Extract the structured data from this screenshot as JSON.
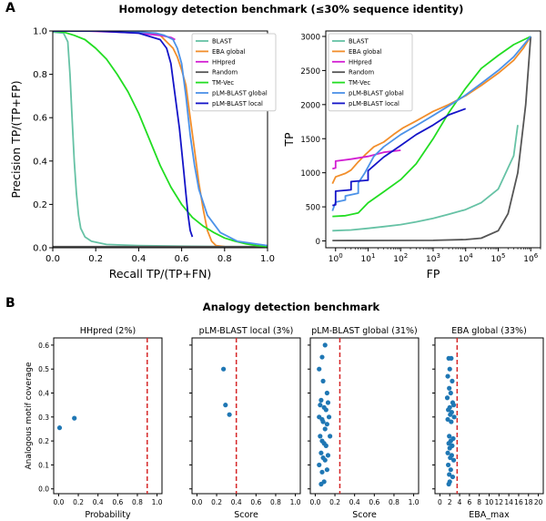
{
  "figure": {
    "panel_a_letter": "A",
    "panel_b_letter": "B",
    "panel_a_title": "Homology detection benchmark (≤30% sequence identity)",
    "panel_b_title": "Analogy detection benchmark"
  },
  "colors": {
    "BLAST": "#66c2a5",
    "EBA global": "#f28e2b",
    "HHpred": "#d21fd2",
    "Random": "#555555",
    "TM-Vec": "#22dd22",
    "pLM-BLAST global": "#4c92e8",
    "pLM-BLAST local": "#1414c8",
    "threshold": "#d62728",
    "points": "#1f77b4"
  },
  "chart_data": [
    {
      "id": "precision_recall",
      "type": "line",
      "xlabel": "Recall TP/(TP+FN)",
      "ylabel": "Precision TP/(TP+FP)",
      "xlim": [
        0,
        1
      ],
      "ylim": [
        0,
        1
      ],
      "xticks": [
        "0.0",
        "0.2",
        "0.4",
        "0.6",
        "0.8",
        "1.0"
      ],
      "yticks": [
        "0.0",
        "0.2",
        "0.4",
        "0.6",
        "0.8",
        "1.0"
      ],
      "legend": "top-right",
      "series": [
        {
          "name": "BLAST",
          "x": [
            0,
            0.05,
            0.07,
            0.08,
            0.09,
            0.1,
            0.11,
            0.12,
            0.13,
            0.15,
            0.18,
            0.25,
            0.4,
            0.6,
            0.8,
            1.0
          ],
          "y": [
            0.995,
            0.99,
            0.95,
            0.8,
            0.6,
            0.4,
            0.25,
            0.15,
            0.09,
            0.05,
            0.03,
            0.015,
            0.01,
            0.007,
            0.005,
            0.004
          ]
        },
        {
          "name": "EBA global",
          "x": [
            0,
            0.2,
            0.4,
            0.46,
            0.5,
            0.53,
            0.56,
            0.58,
            0.6,
            0.62,
            0.64,
            0.66,
            0.68,
            0.7,
            0.72,
            0.74,
            0.76,
            0.8,
            1.0
          ],
          "y": [
            1,
            1,
            0.995,
            0.99,
            0.98,
            0.95,
            0.92,
            0.88,
            0.82,
            0.75,
            0.6,
            0.45,
            0.3,
            0.18,
            0.08,
            0.03,
            0.01,
            0.005,
            0.003
          ]
        },
        {
          "name": "HHpred",
          "x": [
            0,
            0.15,
            0.3,
            0.4,
            0.5,
            0.55,
            0.57
          ],
          "y": [
            1,
            1,
            0.995,
            0.99,
            0.98,
            0.97,
            0.96
          ]
        },
        {
          "name": "Random",
          "x": [
            0,
            1.0
          ],
          "y": [
            0.005,
            0.005
          ]
        },
        {
          "name": "TM-Vec",
          "x": [
            0,
            0.05,
            0.1,
            0.15,
            0.2,
            0.25,
            0.3,
            0.35,
            0.4,
            0.45,
            0.5,
            0.55,
            0.6,
            0.65,
            0.7,
            0.75,
            0.8,
            0.85,
            0.9,
            0.95,
            1.0
          ],
          "y": [
            1,
            0.995,
            0.98,
            0.96,
            0.92,
            0.87,
            0.8,
            0.72,
            0.62,
            0.5,
            0.38,
            0.28,
            0.2,
            0.14,
            0.1,
            0.07,
            0.045,
            0.03,
            0.018,
            0.01,
            0.005
          ]
        },
        {
          "name": "pLM-BLAST global",
          "x": [
            0,
            0.2,
            0.4,
            0.48,
            0.52,
            0.56,
            0.58,
            0.6,
            0.62,
            0.64,
            0.66,
            0.68,
            0.72,
            0.78,
            0.86,
            1.0
          ],
          "y": [
            1,
            1,
            0.995,
            0.99,
            0.98,
            0.96,
            0.92,
            0.85,
            0.7,
            0.52,
            0.38,
            0.27,
            0.15,
            0.07,
            0.03,
            0.01
          ]
        },
        {
          "name": "pLM-BLAST local",
          "x": [
            0,
            0.2,
            0.4,
            0.5,
            0.53,
            0.55,
            0.57,
            0.59,
            0.6,
            0.61,
            0.62,
            0.63,
            0.64,
            0.65
          ],
          "y": [
            1,
            1,
            0.99,
            0.96,
            0.92,
            0.85,
            0.7,
            0.55,
            0.45,
            0.35,
            0.25,
            0.15,
            0.08,
            0.05
          ]
        }
      ]
    },
    {
      "id": "tp_fp",
      "type": "line",
      "xlabel": "FP",
      "ylabel": "TP",
      "xscale": "log",
      "xlim": [
        0.5,
        2000000
      ],
      "ylim": [
        -100,
        3080
      ],
      "xticks": [
        {
          "v": 1,
          "base": "10",
          "exp": "0"
        },
        {
          "v": 10,
          "base": "10",
          "exp": "1"
        },
        {
          "v": 100,
          "base": "10",
          "exp": "2"
        },
        {
          "v": 1000,
          "base": "10",
          "exp": "3"
        },
        {
          "v": 10000,
          "base": "10",
          "exp": "4"
        },
        {
          "v": 100000,
          "base": "10",
          "exp": "5"
        },
        {
          "v": 1000000,
          "base": "10",
          "exp": "6"
        }
      ],
      "yticks": [
        0,
        500,
        1000,
        1500,
        2000,
        2500,
        3000
      ],
      "legend": "top-left",
      "series": [
        {
          "name": "BLAST",
          "x": [
            0.8,
            3,
            10,
            30,
            100,
            300,
            1000,
            3000,
            10000,
            30000,
            100000,
            300000,
            400000
          ],
          "y": [
            150,
            160,
            185,
            210,
            240,
            280,
            330,
            390,
            460,
            560,
            760,
            1250,
            1700
          ]
        },
        {
          "name": "EBA global",
          "x": [
            0.8,
            1,
            2,
            3,
            5,
            8,
            15,
            30,
            60,
            120,
            300,
            1000,
            3000,
            10000,
            30000,
            100000,
            300000,
            600000,
            1000000
          ],
          "y": [
            840,
            940,
            990,
            1040,
            1160,
            1260,
            1380,
            1450,
            1560,
            1660,
            1760,
            1900,
            2000,
            2130,
            2280,
            2460,
            2650,
            2830,
            3000
          ]
        },
        {
          "name": "HHpred",
          "x": [
            0.8,
            1,
            1,
            3,
            10,
            30,
            100
          ],
          "y": [
            1060,
            1070,
            1170,
            1200,
            1240,
            1300,
            1330
          ]
        },
        {
          "name": "Random",
          "x": [
            0.8,
            1000,
            10000,
            30000,
            100000,
            200000,
            400000,
            700000,
            1000000
          ],
          "y": [
            5,
            8,
            20,
            40,
            150,
            400,
            1000,
            2000,
            3000
          ]
        },
        {
          "name": "TM-Vec",
          "x": [
            0.8,
            2,
            5,
            10,
            30,
            100,
            300,
            1000,
            3000,
            10000,
            30000,
            100000,
            300000,
            1000000
          ],
          "y": [
            360,
            370,
            410,
            560,
            720,
            900,
            1130,
            1500,
            1880,
            2240,
            2530,
            2720,
            2880,
            3000
          ]
        },
        {
          "name": "pLM-BLAST global",
          "x": [
            0.8,
            1,
            2,
            2,
            5,
            5,
            8,
            15,
            30,
            100,
            300,
            1000,
            3000,
            10000,
            30000,
            100000,
            300000,
            1000000
          ],
          "y": [
            440,
            570,
            600,
            660,
            700,
            850,
            1000,
            1240,
            1380,
            1560,
            1690,
            1840,
            1980,
            2140,
            2310,
            2500,
            2700,
            3000
          ]
        },
        {
          "name": "pLM-BLAST local",
          "x": [
            0.8,
            1,
            1,
            3,
            3,
            10,
            10,
            30,
            100,
            300,
            1000,
            3000,
            10000
          ],
          "y": [
            520,
            530,
            730,
            750,
            870,
            890,
            1030,
            1230,
            1400,
            1560,
            1700,
            1850,
            1940
          ]
        }
      ]
    },
    {
      "id": "analogy_hhpred",
      "type": "scatter",
      "title": "HHpred (2%)",
      "xlabel": "Probability",
      "ylabel": "Analogous motif coverage",
      "xlim": [
        -0.05,
        1.05
      ],
      "ylim": [
        -0.02,
        0.63
      ],
      "xticks": [
        "0.0",
        "0.2",
        "0.4",
        "0.6",
        "0.8",
        "1.0"
      ],
      "yticks": [
        "0.0",
        "0.1",
        "0.2",
        "0.3",
        "0.4",
        "0.5",
        "0.6"
      ],
      "threshold": 0.9,
      "x": [
        0.01,
        0.16
      ],
      "y": [
        0.255,
        0.295
      ]
    },
    {
      "id": "analogy_plm_local",
      "type": "scatter",
      "title": "pLM-BLAST local (3%)",
      "xlabel": "Score",
      "xlim": [
        -0.05,
        1.05
      ],
      "ylim": [
        -0.02,
        0.63
      ],
      "xticks": [
        "0.0",
        "0.2",
        "0.4",
        "0.6",
        "0.8",
        "1.0"
      ],
      "threshold": 0.4,
      "x": [
        0.27,
        0.29,
        0.33
      ],
      "y": [
        0.5,
        0.35,
        0.31
      ]
    },
    {
      "id": "analogy_plm_global",
      "type": "scatter",
      "title": "pLM-BLAST global (31%)",
      "xlabel": "Score",
      "xlim": [
        -0.05,
        1.05
      ],
      "ylim": [
        -0.02,
        0.63
      ],
      "xticks": [
        "0.0",
        "0.2",
        "0.4",
        "0.6",
        "0.8",
        "1.0"
      ],
      "threshold": 0.25,
      "x": [
        0.1,
        0.07,
        0.04,
        0.08,
        0.12,
        0.06,
        0.13,
        0.05,
        0.09,
        0.11,
        0.04,
        0.14,
        0.07,
        0.08,
        0.12,
        0.1,
        0.05,
        0.15,
        0.07,
        0.09,
        0.11,
        0.06,
        0.13,
        0.08,
        0.1,
        0.04,
        0.12,
        0.07,
        0.09,
        0.06
      ],
      "y": [
        0.6,
        0.55,
        0.5,
        0.45,
        0.4,
        0.37,
        0.36,
        0.35,
        0.34,
        0.33,
        0.3,
        0.3,
        0.29,
        0.28,
        0.27,
        0.25,
        0.22,
        0.22,
        0.2,
        0.19,
        0.18,
        0.15,
        0.14,
        0.13,
        0.12,
        0.1,
        0.08,
        0.07,
        0.03,
        0.02
      ]
    },
    {
      "id": "analogy_eba_global",
      "type": "scatter",
      "title": "EBA global  (33%)",
      "xlabel": "EBA_max",
      "xlim": [
        -1,
        21
      ],
      "ylim": [
        -0.02,
        0.63
      ],
      "xticks": [
        "0",
        "2",
        "4",
        "6",
        "8",
        "10",
        "12",
        "14",
        "16",
        "18",
        "20"
      ],
      "threshold": 3.5,
      "x": [
        1.8,
        2.3,
        2.0,
        1.6,
        2.5,
        1.9,
        2.2,
        1.5,
        2.6,
        2.8,
        2.0,
        1.7,
        2.4,
        2.1,
        2.9,
        1.6,
        2.3,
        1.9,
        2.7,
        2.2,
        1.8,
        2.5,
        2.0,
        1.6,
        2.4,
        2.1,
        2.8,
        1.7,
        2.2,
        1.9,
        2.6,
        2.0,
        1.8
      ],
      "y": [
        0.545,
        0.545,
        0.5,
        0.47,
        0.45,
        0.42,
        0.4,
        0.38,
        0.36,
        0.35,
        0.34,
        0.33,
        0.32,
        0.31,
        0.3,
        0.29,
        0.28,
        0.22,
        0.21,
        0.2,
        0.19,
        0.18,
        0.17,
        0.15,
        0.14,
        0.13,
        0.12,
        0.1,
        0.08,
        0.06,
        0.05,
        0.03,
        0.02
      ]
    }
  ]
}
